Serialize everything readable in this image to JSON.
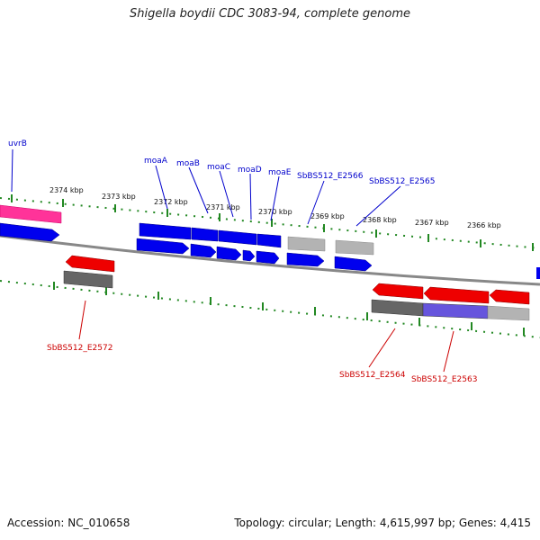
{
  "title": "Shigella boydii CDC 3083-94, complete genome",
  "footer": {
    "accession": "Accession: NC_010658",
    "stats": "Topology: circular; Length: 4,615,997 bp; Genes: 4,415"
  },
  "colors": {
    "forward_gene": "#0000ee",
    "reverse_gene": "#ee0000",
    "uvrB_gene": "#ff3399",
    "pseudo_gene": "#aaaaaa",
    "tick": "#228822",
    "backbone": "#888888"
  },
  "kbp_labels": [
    "2374 kbp",
    "2373 kbp",
    "2372 kbp",
    "2371 kbp",
    "2370 kbp",
    "2369 kbp",
    "2368 kbp",
    "2367 kbp",
    "2366 kbp"
  ],
  "forward_genes": [
    "uvrB",
    "moaA",
    "moaB",
    "moaC",
    "moaD",
    "moaE",
    "SbBS512_E2566",
    "SbBS512_E2565"
  ],
  "reverse_genes": [
    "SbBS512_E2572",
    "SbBS512_E2564",
    "SbBS512_E2563"
  ]
}
